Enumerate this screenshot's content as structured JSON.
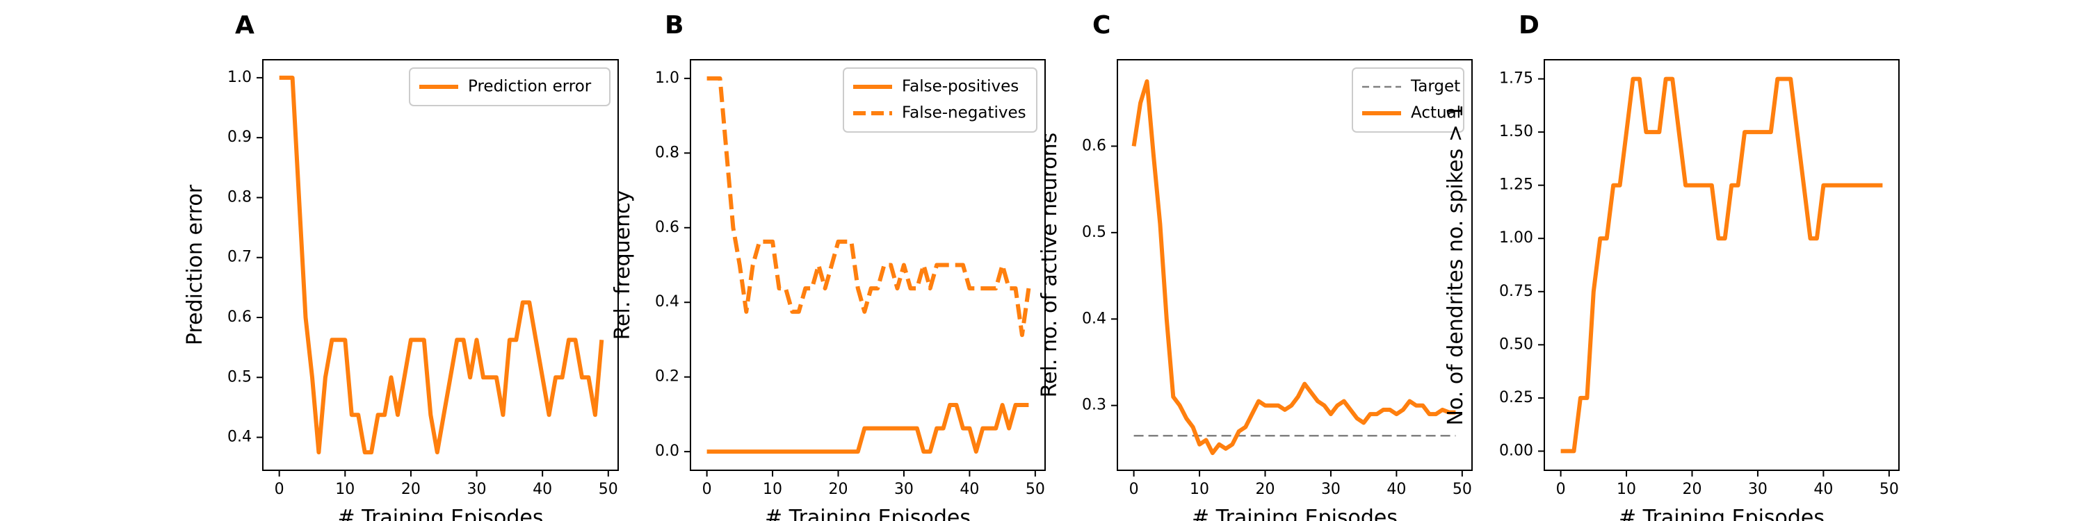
{
  "colors": {
    "accent": "#ff7f0e",
    "target": "#808080"
  },
  "chart_data": [
    {
      "type": "line",
      "panel": "A",
      "xlabel": "# Training Episodes",
      "ylabel": "Prediction error",
      "xlim": [
        -2.5,
        51.5
      ],
      "ylim": [
        0.345,
        1.03
      ],
      "xticks": [
        0,
        10,
        20,
        30,
        40,
        50
      ],
      "xtick_labels": [
        "0",
        "10",
        "20",
        "30",
        "40",
        "50"
      ],
      "yticks": [
        0.4,
        0.5,
        0.6,
        0.7,
        0.8,
        0.9,
        1.0
      ],
      "ytick_labels": [
        "0.4",
        "0.5",
        "0.6",
        "0.7",
        "0.8",
        "0.9",
        "1.0"
      ],
      "legend_position": "top-right",
      "series": [
        {
          "name": "Prediction error",
          "style": "solid",
          "color": "#ff7f0e",
          "x": [
            0,
            1,
            2,
            3,
            4,
            5,
            6,
            7,
            8,
            9,
            10,
            11,
            12,
            13,
            14,
            15,
            16,
            17,
            18,
            19,
            20,
            21,
            22,
            23,
            24,
            25,
            26,
            27,
            28,
            29,
            30,
            31,
            32,
            33,
            34,
            35,
            36,
            37,
            38,
            39,
            40,
            41,
            42,
            43,
            44,
            45,
            46,
            47,
            48,
            49
          ],
          "y": [
            1.0,
            1.0,
            1.0,
            0.8,
            0.6,
            0.5,
            0.375,
            0.5,
            0.5625,
            0.5625,
            0.5625,
            0.4375,
            0.4375,
            0.375,
            0.375,
            0.4375,
            0.4375,
            0.5,
            0.4375,
            0.5,
            0.5625,
            0.5625,
            0.5625,
            0.4375,
            0.375,
            0.4375,
            0.5,
            0.5625,
            0.5625,
            0.5,
            0.5625,
            0.5,
            0.5,
            0.5,
            0.4375,
            0.5625,
            0.5625,
            0.625,
            0.625,
            0.5625,
            0.5,
            0.4375,
            0.5,
            0.5,
            0.5625,
            0.5625,
            0.5,
            0.5,
            0.4375,
            0.5625
          ]
        }
      ]
    },
    {
      "type": "line",
      "panel": "B",
      "xlabel": "# Training Episodes",
      "ylabel": "Rel. frequency",
      "xlim": [
        -2.5,
        51.5
      ],
      "ylim": [
        -0.05,
        1.05
      ],
      "xticks": [
        0,
        10,
        20,
        30,
        40,
        50
      ],
      "xtick_labels": [
        "0",
        "10",
        "20",
        "30",
        "40",
        "50"
      ],
      "yticks": [
        0.0,
        0.2,
        0.4,
        0.6,
        0.8,
        1.0
      ],
      "ytick_labels": [
        "0.0",
        "0.2",
        "0.4",
        "0.6",
        "0.8",
        "1.0"
      ],
      "legend_position": "top-right",
      "series": [
        {
          "name": "False-positives",
          "style": "solid",
          "color": "#ff7f0e",
          "x": [
            0,
            1,
            2,
            3,
            4,
            5,
            6,
            7,
            8,
            9,
            10,
            11,
            12,
            13,
            14,
            15,
            16,
            17,
            18,
            19,
            20,
            21,
            22,
            23,
            24,
            25,
            26,
            27,
            28,
            29,
            30,
            31,
            32,
            33,
            34,
            35,
            36,
            37,
            38,
            39,
            40,
            41,
            42,
            43,
            44,
            45,
            46,
            47,
            48,
            49
          ],
          "y": [
            0,
            0,
            0,
            0,
            0,
            0,
            0,
            0,
            0,
            0,
            0,
            0,
            0,
            0,
            0,
            0,
            0,
            0,
            0,
            0,
            0,
            0,
            0,
            0,
            0.0625,
            0.0625,
            0.0625,
            0.0625,
            0.0625,
            0.0625,
            0.0625,
            0.0625,
            0.0625,
            0,
            0,
            0.0625,
            0.0625,
            0.125,
            0.125,
            0.0625,
            0.0625,
            0,
            0.0625,
            0.0625,
            0.0625,
            0.125,
            0.0625,
            0.125,
            0.125,
            0.125
          ]
        },
        {
          "name": "False-negatives",
          "style": "dashed",
          "color": "#ff7f0e",
          "x": [
            0,
            1,
            2,
            3,
            4,
            5,
            6,
            7,
            8,
            9,
            10,
            11,
            12,
            13,
            14,
            15,
            16,
            17,
            18,
            19,
            20,
            21,
            22,
            23,
            24,
            25,
            26,
            27,
            28,
            29,
            30,
            31,
            32,
            33,
            34,
            35,
            36,
            37,
            38,
            39,
            40,
            41,
            42,
            43,
            44,
            45,
            46,
            47,
            48,
            49
          ],
          "y": [
            1.0,
            1.0,
            1.0,
            0.8,
            0.6,
            0.5,
            0.375,
            0.5,
            0.5625,
            0.5625,
            0.5625,
            0.4375,
            0.4375,
            0.375,
            0.375,
            0.4375,
            0.4375,
            0.5,
            0.4375,
            0.5,
            0.5625,
            0.5625,
            0.5625,
            0.4375,
            0.375,
            0.4375,
            0.4375,
            0.5,
            0.5,
            0.4375,
            0.5,
            0.4375,
            0.4375,
            0.5,
            0.4375,
            0.5,
            0.5,
            0.5,
            0.5,
            0.5,
            0.4375,
            0.4375,
            0.4375,
            0.4375,
            0.4375,
            0.5,
            0.4375,
            0.4375,
            0.3125,
            0.4375
          ]
        }
      ]
    },
    {
      "type": "line",
      "panel": "C",
      "xlabel": "# Training Episodes",
      "ylabel": "Rel. no. of active neurons",
      "xlim": [
        -2.5,
        51.5
      ],
      "ylim": [
        0.225,
        0.7
      ],
      "xticks": [
        0,
        10,
        20,
        30,
        40,
        50
      ],
      "xtick_labels": [
        "0",
        "10",
        "20",
        "30",
        "40",
        "50"
      ],
      "yticks": [
        0.3,
        0.4,
        0.5,
        0.6
      ],
      "ytick_labels": [
        "0.3",
        "0.4",
        "0.5",
        "0.6"
      ],
      "legend_position": "top-right",
      "series": [
        {
          "name": "Target",
          "style": "dashed-thin",
          "color": "#808080",
          "x": [
            0,
            49
          ],
          "y": [
            0.265,
            0.265
          ]
        },
        {
          "name": "Actual",
          "style": "solid",
          "color": "#ff7f0e",
          "x": [
            0,
            1,
            2,
            3,
            4,
            5,
            6,
            7,
            8,
            9,
            10,
            11,
            12,
            13,
            14,
            15,
            16,
            17,
            18,
            19,
            20,
            21,
            22,
            23,
            24,
            25,
            26,
            27,
            28,
            29,
            30,
            31,
            32,
            33,
            34,
            35,
            36,
            37,
            38,
            39,
            40,
            41,
            42,
            43,
            44,
            45,
            46,
            47,
            48,
            49
          ],
          "y": [
            0.6,
            0.65,
            0.675,
            0.59,
            0.51,
            0.4,
            0.31,
            0.3,
            0.285,
            0.275,
            0.255,
            0.26,
            0.245,
            0.255,
            0.25,
            0.255,
            0.27,
            0.275,
            0.29,
            0.305,
            0.3,
            0.3,
            0.3,
            0.295,
            0.3,
            0.31,
            0.325,
            0.315,
            0.305,
            0.3,
            0.29,
            0.3,
            0.305,
            0.295,
            0.285,
            0.28,
            0.29,
            0.29,
            0.295,
            0.295,
            0.29,
            0.295,
            0.305,
            0.3,
            0.3,
            0.29,
            0.29,
            0.295,
            0.292,
            0.292
          ]
        }
      ]
    },
    {
      "type": "line",
      "panel": "D",
      "xlabel": "# Training Episodes",
      "ylabel": "No. of dendrites no. spikes > 1",
      "xlim": [
        -2.5,
        51.5
      ],
      "ylim": [
        -0.09,
        1.84
      ],
      "xticks": [
        0,
        10,
        20,
        30,
        40,
        50
      ],
      "xtick_labels": [
        "0",
        "10",
        "20",
        "30",
        "40",
        "50"
      ],
      "yticks": [
        0.0,
        0.25,
        0.5,
        0.75,
        1.0,
        1.25,
        1.5,
        1.75
      ],
      "ytick_labels": [
        "0.00",
        "0.25",
        "0.50",
        "0.75",
        "1.00",
        "1.25",
        "1.50",
        "1.75"
      ],
      "series": [
        {
          "style": "solid",
          "color": "#ff7f0e",
          "x": [
            0,
            1,
            2,
            3,
            4,
            5,
            6,
            7,
            8,
            9,
            10,
            11,
            12,
            13,
            14,
            15,
            16,
            17,
            18,
            19,
            20,
            21,
            22,
            23,
            24,
            25,
            26,
            27,
            28,
            29,
            30,
            31,
            32,
            33,
            34,
            35,
            36,
            37,
            38,
            39,
            40,
            41,
            42,
            43,
            44,
            45,
            46,
            47,
            48,
            49
          ],
          "y": [
            0,
            0,
            0,
            0.25,
            0.25,
            0.75,
            1.0,
            1.0,
            1.25,
            1.25,
            1.5,
            1.75,
            1.75,
            1.5,
            1.5,
            1.5,
            1.75,
            1.75,
            1.5,
            1.25,
            1.25,
            1.25,
            1.25,
            1.25,
            1.0,
            1.0,
            1.25,
            1.25,
            1.5,
            1.5,
            1.5,
            1.5,
            1.5,
            1.75,
            1.75,
            1.75,
            1.5,
            1.25,
            1.0,
            1.0,
            1.25,
            1.25,
            1.25,
            1.25,
            1.25,
            1.25,
            1.25,
            1.25,
            1.25,
            1.25
          ]
        }
      ]
    }
  ]
}
